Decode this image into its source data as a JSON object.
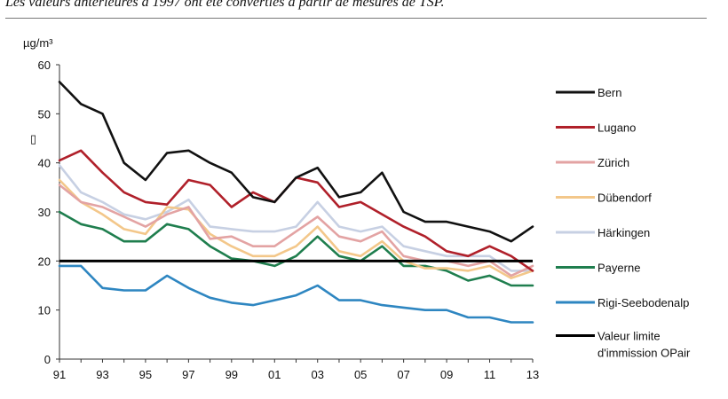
{
  "caption": "Les valeurs antérieures à 1997 ont été converties à partir de mesures de TSP.",
  "chart_data": {
    "type": "line",
    "ylabel": "µg/m³",
    "ylim": [
      0,
      60
    ],
    "yticks": [
      0,
      10,
      20,
      30,
      40,
      50,
      60
    ],
    "x": [
      1991,
      1992,
      1993,
      1994,
      1995,
      1996,
      1997,
      1998,
      1999,
      2000,
      2001,
      2002,
      2003,
      2004,
      2005,
      2006,
      2007,
      2008,
      2009,
      2010,
      2011,
      2012,
      2013
    ],
    "xlim": [
      1991,
      2013
    ],
    "xticks": [
      {
        "value": 1991,
        "label": "91"
      },
      {
        "value": 1993,
        "label": "93"
      },
      {
        "value": 1995,
        "label": "95"
      },
      {
        "value": 1997,
        "label": "97"
      },
      {
        "value": 1999,
        "label": "99"
      },
      {
        "value": 2001,
        "label": "01"
      },
      {
        "value": 2003,
        "label": "03"
      },
      {
        "value": 2005,
        "label": "05"
      },
      {
        "value": 2007,
        "label": "07"
      },
      {
        "value": 2009,
        "label": "09"
      },
      {
        "value": 2011,
        "label": "11"
      },
      {
        "value": 2013,
        "label": "13"
      }
    ],
    "series": [
      {
        "name": "Bern",
        "color": "#111111",
        "values": [
          56.5,
          52,
          50,
          40,
          36.5,
          42,
          42.5,
          40,
          38,
          33,
          32,
          37,
          39,
          33,
          34,
          38,
          30,
          28,
          28,
          27,
          26,
          24,
          27
        ]
      },
      {
        "name": "Lugano",
        "color": "#b0202a",
        "values": [
          40.5,
          42.5,
          38,
          34,
          32,
          31.5,
          36.5,
          35.5,
          31,
          34,
          32,
          37,
          36,
          31,
          32,
          29.5,
          27,
          25,
          22,
          21,
          23,
          21,
          18
        ]
      },
      {
        "name": "Zürich",
        "color": "#e3a3a3",
        "values": [
          35.5,
          32,
          31,
          29,
          27,
          29.5,
          31,
          24.5,
          25,
          23,
          23,
          26,
          29,
          25,
          24,
          26,
          21,
          20,
          20,
          19,
          20,
          17,
          19
        ]
      },
      {
        "name": "Dübendorf",
        "color": "#f3c78a",
        "values": [
          36.5,
          32,
          29.5,
          26.5,
          25.5,
          31,
          30.5,
          25.5,
          23,
          21,
          21,
          23,
          27,
          22,
          21,
          24,
          20,
          18.5,
          18.5,
          18,
          19,
          16.5,
          18
        ]
      },
      {
        "name": "Härkingen",
        "color": "#c7d0e3",
        "values": [
          39.5,
          34,
          32,
          29.5,
          28.5,
          30,
          32.5,
          27,
          26.5,
          26,
          26,
          27,
          32,
          27,
          26,
          27,
          23,
          22,
          21,
          21,
          21,
          18,
          18
        ]
      },
      {
        "name": "Payerne",
        "color": "#1f7e4e",
        "values": [
          30,
          27.5,
          26.5,
          24,
          24,
          27.5,
          26.5,
          23,
          20.5,
          20,
          19,
          21,
          25,
          21,
          20,
          23,
          19,
          19,
          18,
          16,
          17,
          15,
          15
        ]
      },
      {
        "name": "Rigi-Seebodenalp",
        "color": "#2e86c1",
        "values": [
          19,
          19,
          14.5,
          14,
          14,
          17,
          14.5,
          12.5,
          11.5,
          11,
          12,
          13,
          15,
          12,
          12,
          11,
          10.5,
          10,
          10,
          8.5,
          8.5,
          7.5,
          7.5
        ]
      }
    ],
    "limit": {
      "name": "Valeur limite d'immission OPair",
      "line1": "Valeur limite",
      "line2": "d'immission OPair",
      "value": 20,
      "color": "#000000"
    },
    "stray_mark": "▯"
  }
}
